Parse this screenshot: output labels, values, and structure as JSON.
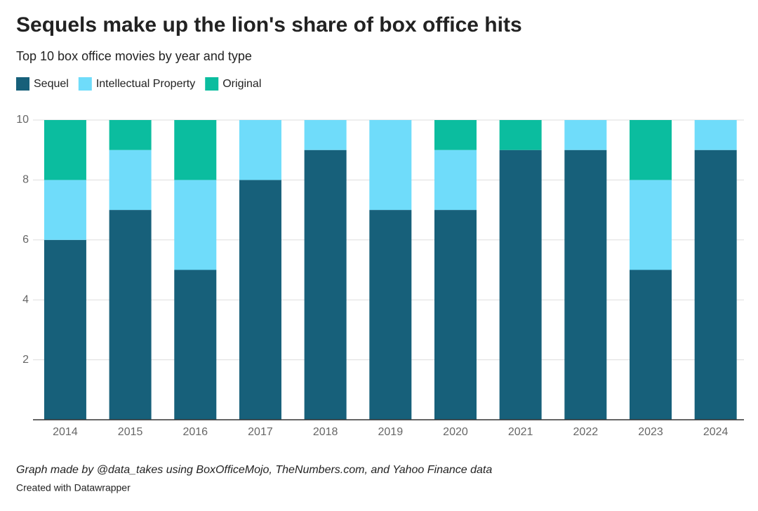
{
  "chart_data": {
    "type": "stacked-bar",
    "title": "Sequels make up the lion's share of box office hits",
    "subtitle": "Top 10 box office movies by year and type",
    "categories": [
      "2014",
      "2015",
      "2016",
      "2017",
      "2018",
      "2019",
      "2020",
      "2021",
      "2022",
      "2023",
      "2024"
    ],
    "series": [
      {
        "name": "Sequel",
        "color": "#17607a",
        "values": [
          6,
          7,
          5,
          8,
          9,
          7,
          7,
          9,
          9,
          5,
          9
        ]
      },
      {
        "name": "Intellectual Property",
        "color": "#6fdcfa",
        "values": [
          2,
          2,
          3,
          2,
          1,
          3,
          2,
          0,
          1,
          3,
          1
        ]
      },
      {
        "name": "Original",
        "color": "#0bbd9f",
        "values": [
          2,
          1,
          2,
          0,
          0,
          0,
          1,
          1,
          0,
          2,
          0
        ]
      }
    ],
    "ylim": [
      0,
      10
    ],
    "yticks": [
      2,
      4,
      6,
      8,
      10
    ],
    "grid": true
  },
  "footer": {
    "note": "Graph made by @data_takes using BoxOfficeMojo, TheNumbers.com, and Yahoo Finance data",
    "credit": "Created with",
    "credit_link": "Datawrapper"
  }
}
